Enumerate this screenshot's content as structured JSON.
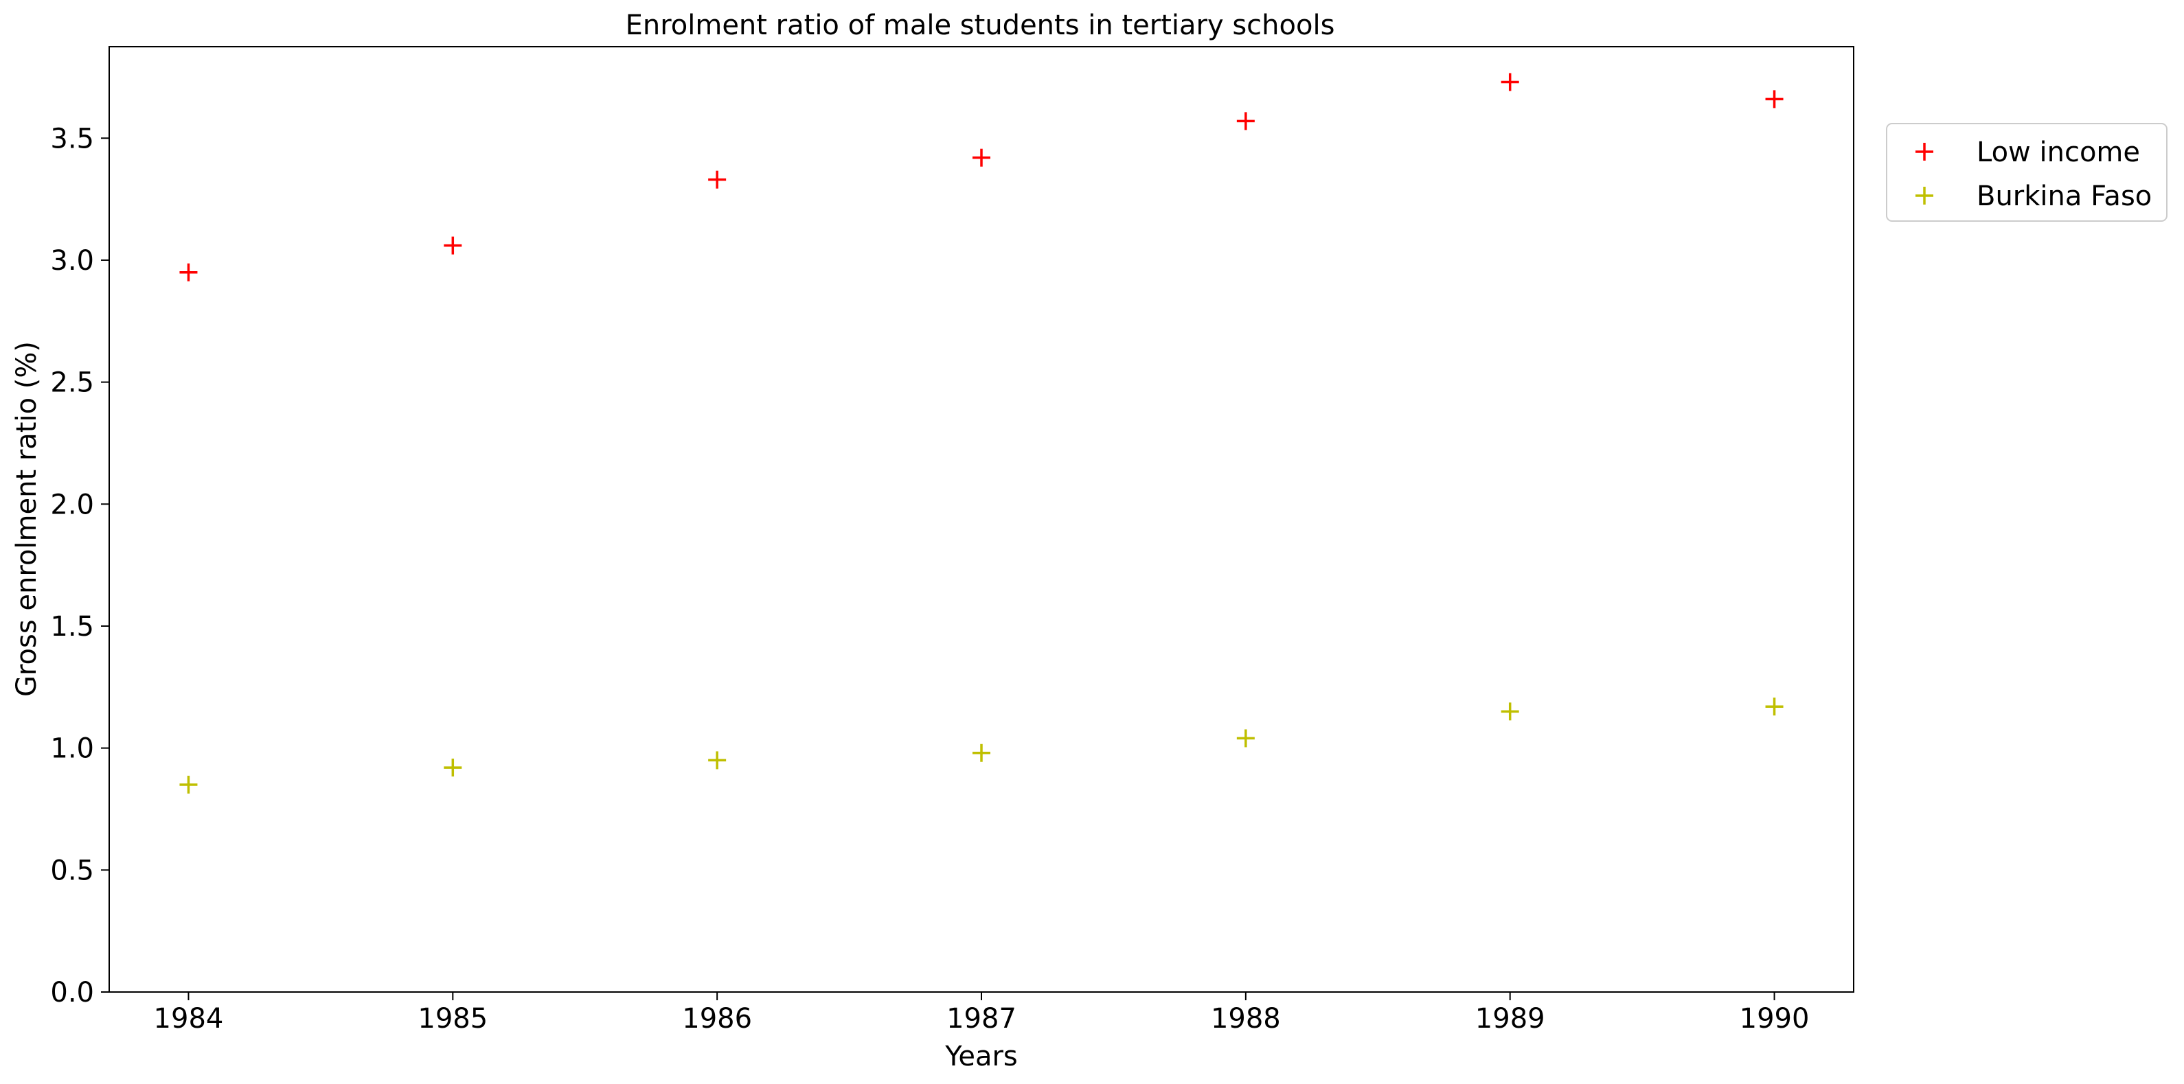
{
  "chart_data": {
    "type": "scatter",
    "title": "Enrolment ratio of male students in tertiary schools",
    "xlabel": "Years",
    "ylabel": "Gross enrolment ratio (%)",
    "x": [
      1984,
      1985,
      1986,
      1987,
      1988,
      1989,
      1990
    ],
    "x_ticks": [
      "1984",
      "1985",
      "1986",
      "1987",
      "1988",
      "1989",
      "1990"
    ],
    "xlim": [
      1983.7,
      1990.3
    ],
    "ylim": [
      0.0,
      3.875
    ],
    "y_ticks": [
      "0.0",
      "0.5",
      "1.0",
      "1.5",
      "2.0",
      "2.5",
      "3.0",
      "3.5"
    ],
    "grid": false,
    "legend_position": "right, outside plot area, top",
    "marker": "plus",
    "series": [
      {
        "name": "Low income",
        "color": "#ff0000",
        "values": [
          2.95,
          3.06,
          3.33,
          3.42,
          3.57,
          3.73,
          3.66
        ]
      },
      {
        "name": "Burkina Faso",
        "color": "#bfbf00",
        "values": [
          0.85,
          0.92,
          0.95,
          0.98,
          1.04,
          1.15,
          1.17
        ]
      }
    ]
  }
}
